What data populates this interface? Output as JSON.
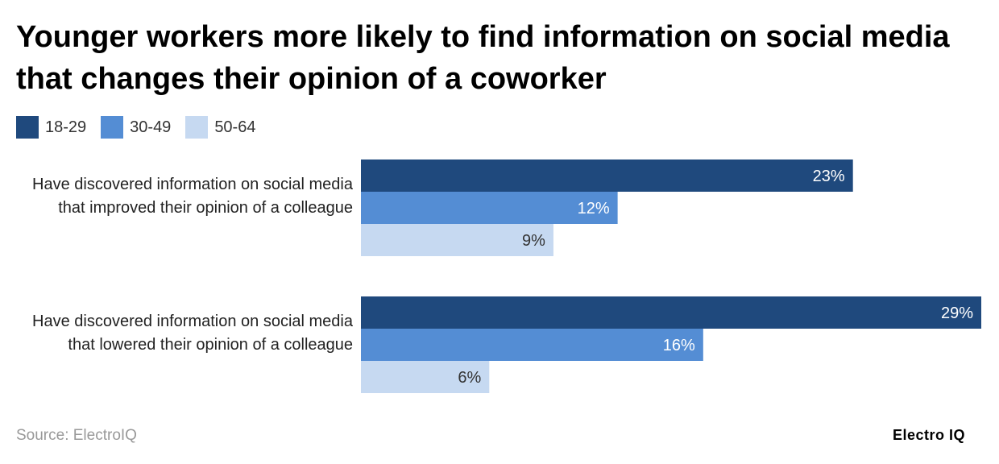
{
  "chart_data": {
    "type": "bar",
    "orientation": "horizontal",
    "title": "Younger workers more likely to find information on social media that changes their opinion of a coworker",
    "categories": [
      "Have discovered information on social media that improved their opinion of a colleague",
      "Have discovered information on social media that lowered their opinion of a colleague"
    ],
    "series": [
      {
        "name": "18-29",
        "color": "#1f497d",
        "values": [
          23,
          29
        ]
      },
      {
        "name": "30-49",
        "color": "#548dd4",
        "values": [
          12,
          16
        ]
      },
      {
        "name": "50-64",
        "color": "#c6d9f1",
        "values": [
          9,
          6
        ]
      }
    ],
    "value_suffix": "%",
    "xlim": [
      0,
      29
    ],
    "grid": false,
    "legend_position": "top-left",
    "data_labels": true
  },
  "source": "Source: ElectroIQ",
  "logo": "Electro IQ"
}
